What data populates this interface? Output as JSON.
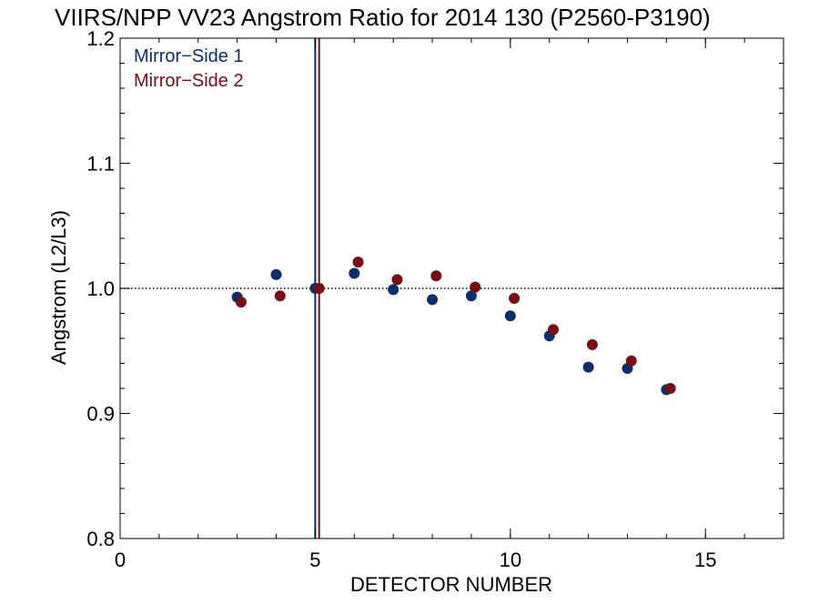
{
  "chart_data": {
    "type": "scatter",
    "title": "VIIRS/NPP VV23 Angstrom Ratio for 2014 130 (P2560-P3190)",
    "xlabel": "DETECTOR NUMBER",
    "ylabel": "Angstrom (L2/L3)",
    "xlim": [
      0,
      17
    ],
    "ylim": [
      0.8,
      1.2
    ],
    "x_ticks": [
      0,
      5,
      10,
      15
    ],
    "x_tick_labels": [
      "0",
      "5",
      "10",
      "15"
    ],
    "x_minor_step": 1,
    "y_ticks": [
      0.8,
      0.9,
      1.0,
      1.1,
      1.2
    ],
    "y_tick_labels": [
      "0.8",
      "0.9",
      "1.0",
      "1.1",
      "1.2"
    ],
    "y_minor_step": 0.02,
    "reference_line_y": 1.0,
    "reference_line_style": "dotted",
    "legend_placement": "top-left",
    "series": [
      {
        "name": "Mirror-Side 1",
        "label": "Mirror−Side 1",
        "color": "#0a2e6e",
        "marker_line_x": 5.0,
        "x": [
          3,
          4,
          5,
          6,
          7,
          8,
          9,
          10,
          11,
          12,
          13,
          14
        ],
        "y": [
          0.993,
          1.011,
          1.0,
          1.012,
          0.999,
          0.991,
          0.994,
          0.978,
          0.962,
          0.937,
          0.936,
          0.919
        ]
      },
      {
        "name": "Mirror-Side 2",
        "label": "Mirror−Side 2",
        "color": "#7a0c14",
        "marker_line_x": 5.1,
        "x": [
          3.1,
          4.1,
          5.1,
          6.1,
          7.1,
          8.1,
          9.1,
          10.1,
          11.1,
          12.1,
          13.1,
          14.1
        ],
        "y": [
          0.989,
          0.994,
          1.0,
          1.021,
          1.007,
          1.01,
          1.001,
          0.992,
          0.967,
          0.955,
          0.942,
          0.92
        ]
      }
    ]
  }
}
